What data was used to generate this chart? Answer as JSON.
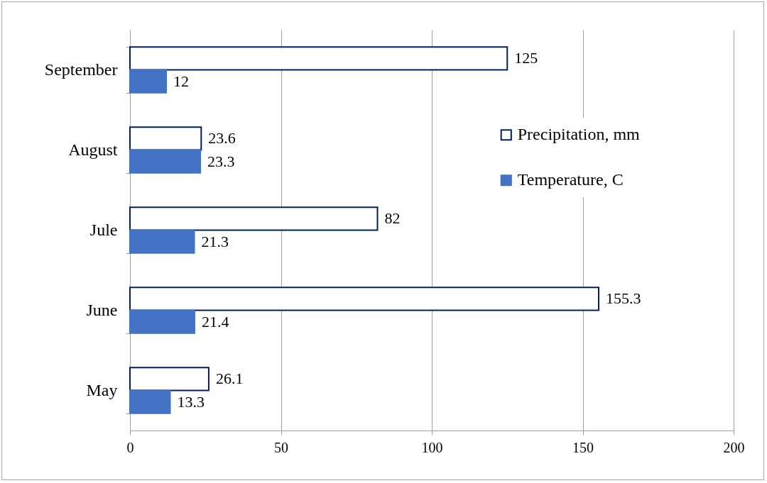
{
  "chart_data": {
    "type": "bar",
    "orientation": "horizontal",
    "categories": [
      "September",
      "August",
      "Jule",
      "June",
      "May"
    ],
    "series": [
      {
        "name": "Precipitation, mm",
        "color": "#ffffff",
        "values": [
          125,
          23.6,
          82,
          155.3,
          26.1
        ]
      },
      {
        "name": "Temperature, C",
        "color": "#4472c4",
        "values": [
          12,
          23.3,
          21.3,
          21.4,
          13.3
        ]
      }
    ],
    "xlim": [
      0,
      200
    ],
    "xticks": [
      0,
      50,
      100,
      150,
      200
    ],
    "grid": "x",
    "legend": "right",
    "data_labels": true
  }
}
